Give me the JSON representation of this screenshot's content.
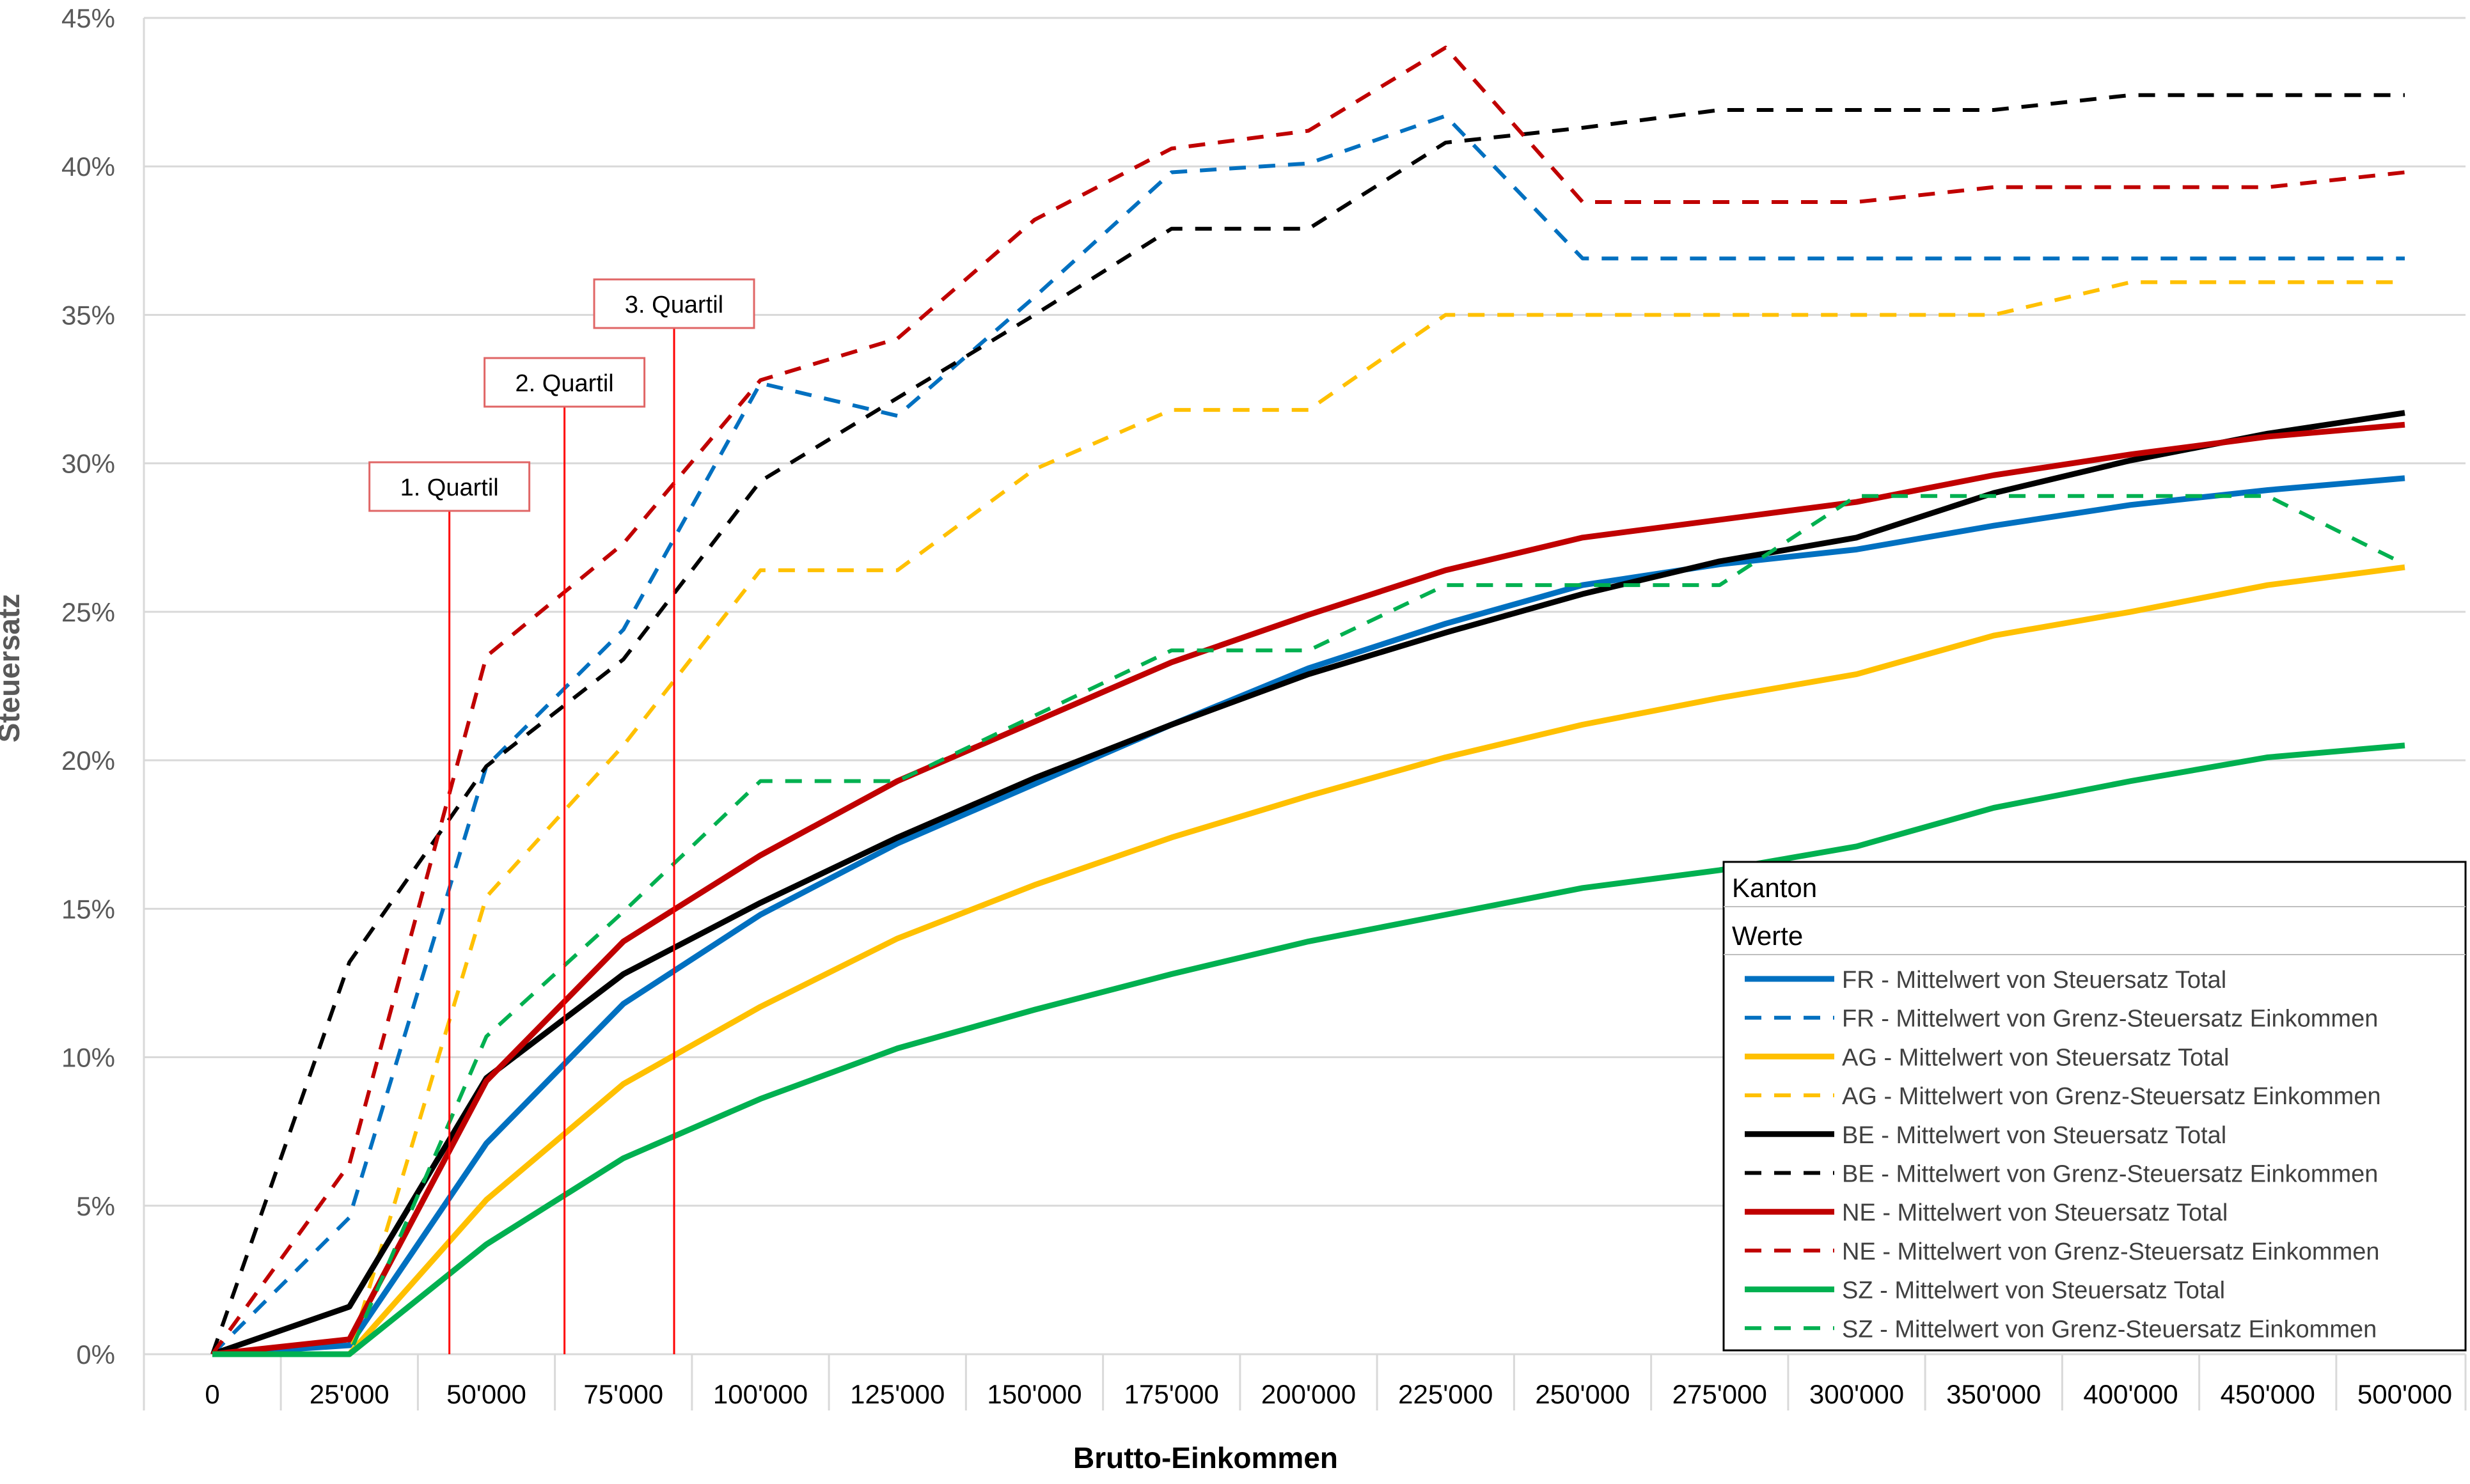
{
  "chart_data": {
    "type": "line",
    "xlabel": "Brutto-Einkommen",
    "ylabel": "Steuersatz",
    "categories": [
      "0",
      "25'000",
      "50'000",
      "75'000",
      "100'000",
      "125'000",
      "150'000",
      "175'000",
      "200'000",
      "225'000",
      "250'000",
      "275'000",
      "300'000",
      "350'000",
      "400'000",
      "450'000",
      "500'000"
    ],
    "ylim": [
      0,
      45
    ],
    "yticks": [
      0,
      5,
      10,
      15,
      20,
      25,
      30,
      35,
      40,
      45
    ],
    "ytick_labels": [
      "0%",
      "5%",
      "10%",
      "15%",
      "20%",
      "25%",
      "30%",
      "35%",
      "40%",
      "45%"
    ],
    "grid": "horizontal",
    "legend": {
      "placement": "bottom-right",
      "header1": "Kanton",
      "header2": "Werte"
    },
    "series": [
      {
        "name": "FR - Mittelwert von Steuersatz Total",
        "color": "#0070c0",
        "dash": false,
        "values": [
          0,
          0.3,
          7.1,
          11.8,
          14.8,
          17.2,
          19.2,
          21.2,
          23.1,
          24.6,
          25.9,
          26.6,
          27.1,
          27.9,
          28.6,
          29.1,
          29.5
        ]
      },
      {
        "name": "FR - Mittelwert von Grenz-Steuersatz Einkommen",
        "color": "#0070c0",
        "dash": true,
        "values": [
          0,
          4.6,
          19.8,
          24.4,
          32.7,
          31.6,
          35.6,
          39.8,
          40.1,
          41.7,
          36.9,
          36.9,
          36.9,
          36.9,
          36.9,
          36.9,
          36.9
        ]
      },
      {
        "name": "AG - Mittelwert von Steuersatz Total",
        "color": "#ffc000",
        "dash": false,
        "values": [
          0,
          0,
          5.2,
          9.1,
          11.7,
          14.0,
          15.8,
          17.4,
          18.8,
          20.1,
          21.2,
          22.1,
          22.9,
          24.2,
          25.0,
          25.9,
          26.5
        ]
      },
      {
        "name": "AG - Mittelwert von Grenz-Steuersatz Einkommen",
        "color": "#ffc000",
        "dash": true,
        "values": [
          0,
          0,
          15.4,
          20.5,
          26.4,
          26.4,
          29.8,
          31.8,
          31.8,
          35.0,
          35.0,
          35.0,
          35.0,
          35.0,
          36.1,
          36.1,
          36.1
        ]
      },
      {
        "name": "BE - Mittelwert von Steuersatz Total",
        "color": "#000000",
        "dash": false,
        "values": [
          0,
          1.6,
          9.3,
          12.8,
          15.2,
          17.4,
          19.4,
          21.2,
          22.9,
          24.3,
          25.6,
          26.7,
          27.5,
          29.0,
          30.1,
          31.0,
          31.7
        ]
      },
      {
        "name": "BE - Mittelwert von Grenz-Steuersatz Einkommen",
        "color": "#000000",
        "dash": true,
        "values": [
          0,
          13.2,
          19.8,
          23.4,
          29.4,
          32.2,
          35.0,
          37.9,
          37.9,
          40.8,
          41.3,
          41.9,
          41.9,
          41.9,
          42.4,
          42.4,
          42.4
        ]
      },
      {
        "name": "NE - Mittelwert von Steuersatz Total",
        "color": "#c00000",
        "dash": false,
        "values": [
          0,
          0.5,
          9.2,
          13.9,
          16.8,
          19.3,
          21.3,
          23.3,
          24.9,
          26.4,
          27.5,
          28.1,
          28.7,
          29.6,
          30.3,
          30.9,
          31.3
        ]
      },
      {
        "name": "NE - Mittelwert von Grenz-Steuersatz Einkommen",
        "color": "#c00000",
        "dash": true,
        "values": [
          0,
          6.4,
          23.5,
          27.3,
          32.8,
          34.2,
          38.2,
          40.6,
          41.2,
          44.0,
          38.8,
          38.8,
          38.8,
          39.3,
          39.3,
          39.3,
          39.8
        ]
      },
      {
        "name": "SZ - Mittelwert von Steuersatz Total",
        "color": "#00b050",
        "dash": false,
        "values": [
          0,
          0,
          3.7,
          6.6,
          8.6,
          10.3,
          11.6,
          12.8,
          13.9,
          14.8,
          15.7,
          16.3,
          17.1,
          18.4,
          19.3,
          20.1,
          20.5
        ]
      },
      {
        "name": "SZ - Mittelwert von Grenz-Steuersatz Einkommen",
        "color": "#00b050",
        "dash": true,
        "values": [
          0,
          0,
          10.7,
          14.9,
          19.3,
          19.3,
          21.5,
          23.7,
          23.7,
          25.9,
          25.9,
          25.9,
          28.9,
          28.9,
          28.9,
          28.9,
          26.6
        ]
      }
    ],
    "annotations": [
      {
        "label": "1. Quartil",
        "x_position": 1.73,
        "color": "#e06666"
      },
      {
        "label": "2. Quartil",
        "x_position": 2.57,
        "color": "#e06666"
      },
      {
        "label": "3. Quartil",
        "x_position": 3.37,
        "color": "#e06666"
      }
    ]
  }
}
